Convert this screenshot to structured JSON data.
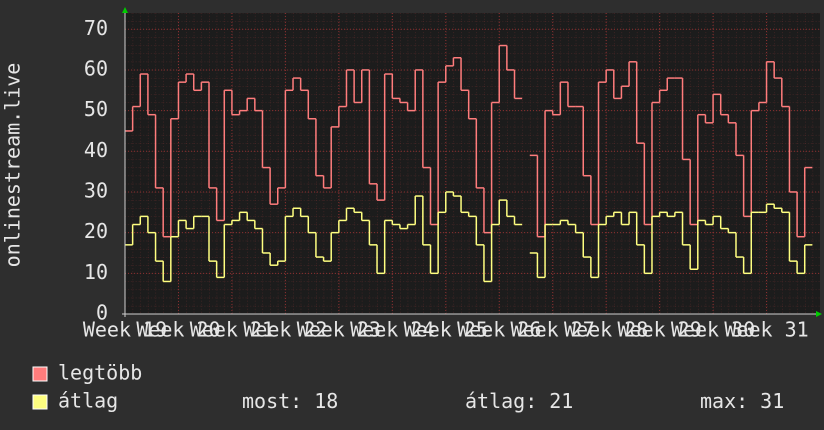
{
  "chart_data": {
    "type": "line",
    "ylabel": "onlinestream.live",
    "xlim": [
      0,
      91
    ],
    "xticks": [
      {
        "value": 0,
        "label": "Week 19"
      },
      {
        "value": 7,
        "label": "Week 20"
      },
      {
        "value": 14,
        "label": "Week 21"
      },
      {
        "value": 21,
        "label": "Week 22"
      },
      {
        "value": 28,
        "label": "Week 23"
      },
      {
        "value": 35,
        "label": "Week 24"
      },
      {
        "value": 42,
        "label": "Week 25"
      },
      {
        "value": 49,
        "label": "Week 26"
      },
      {
        "value": 56,
        "label": "Week 27"
      },
      {
        "value": 63,
        "label": "Week 28"
      },
      {
        "value": 70,
        "label": "Week 29"
      },
      {
        "value": 77,
        "label": "Week 30"
      },
      {
        "value": 84,
        "label": "Week 31"
      }
    ],
    "ylim": [
      0,
      74
    ],
    "yticks": [
      0,
      10,
      20,
      30,
      40,
      50,
      60,
      70
    ],
    "grid": true,
    "step": true,
    "series": [
      {
        "name": "legtöbb",
        "color": "#ff7c7c",
        "values": [
          45,
          51,
          59,
          49,
          31,
          19,
          48,
          57,
          59,
          55,
          57,
          31,
          23,
          55,
          49,
          50,
          53,
          50,
          36,
          27,
          31,
          55,
          58,
          55,
          48,
          34,
          31,
          46,
          51,
          60,
          52,
          60,
          32,
          28,
          59,
          53,
          52,
          50,
          60,
          36,
          22,
          57,
          61,
          63,
          55,
          48,
          31,
          20,
          52,
          66,
          60,
          53,
          null,
          39,
          19,
          50,
          49,
          57,
          51,
          51,
          34,
          22,
          57,
          60,
          53,
          56,
          62,
          42,
          22,
          52,
          55,
          58,
          58,
          38,
          22,
          49,
          47,
          54,
          49,
          47,
          39,
          24,
          50,
          52,
          62,
          58,
          51,
          30,
          19,
          36
        ]
      },
      {
        "name": "átlag",
        "color": "#ffff80",
        "values": [
          17,
          22,
          24,
          20,
          13,
          8,
          19,
          23,
          21,
          24,
          24,
          13,
          9,
          22,
          23,
          25,
          23,
          21,
          15,
          12,
          13,
          24,
          26,
          24,
          20,
          14,
          13,
          20,
          23,
          26,
          25,
          23,
          17,
          10,
          23,
          22,
          21,
          22,
          29,
          17,
          10,
          25,
          30,
          29,
          25,
          24,
          17,
          8,
          22,
          28,
          24,
          22,
          null,
          15,
          9,
          22,
          22,
          23,
          22,
          20,
          14,
          9,
          22,
          24,
          25,
          22,
          25,
          17,
          10,
          24,
          25,
          24,
          25,
          17,
          11,
          23,
          22,
          24,
          21,
          20,
          14,
          10,
          25,
          25,
          27,
          26,
          25,
          13,
          10,
          17
        ]
      }
    ],
    "legend_stats": [
      {
        "label": "most:",
        "value": 18
      },
      {
        "label": "átlag:",
        "value": 21
      },
      {
        "label": "max:",
        "value": 31
      }
    ]
  }
}
